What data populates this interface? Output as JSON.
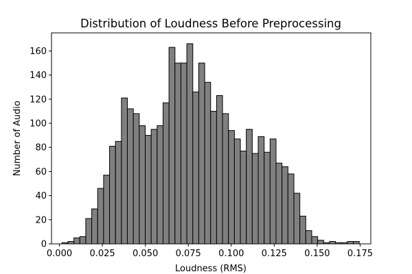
{
  "chart_data": {
    "type": "bar",
    "title": "Distribution of Loudness Before Preprocessing",
    "xlabel": "Loudness (RMS)",
    "ylabel": "Number of Audio",
    "xlim": [
      -0.0046,
      0.1812
    ],
    "ylim": [
      0,
      175
    ],
    "x_ticks": [
      0.0,
      0.025,
      0.05,
      0.075,
      0.1,
      0.125,
      0.15,
      0.175
    ],
    "x_tick_labels": [
      "0.000",
      "0.025",
      "0.050",
      "0.075",
      "0.100",
      "0.125",
      "0.150",
      "0.175"
    ],
    "y_ticks": [
      0,
      20,
      40,
      60,
      80,
      100,
      120,
      140,
      160
    ],
    "y_tick_labels": [
      "0",
      "20",
      "40",
      "60",
      "80",
      "100",
      "120",
      "140",
      "160"
    ],
    "bin_start": 0.0015,
    "bin_width": 0.00346,
    "values": [
      1,
      2,
      5,
      6,
      21,
      29,
      46,
      57,
      81,
      85,
      121,
      112,
      108,
      98,
      90,
      95,
      98,
      117,
      163,
      150,
      150,
      166,
      126,
      150,
      134,
      110,
      123,
      108,
      94,
      87,
      77,
      95,
      75,
      89,
      76,
      87,
      67,
      64,
      58,
      42,
      23,
      11,
      6,
      3,
      1,
      2,
      1,
      1,
      2,
      2
    ],
    "grid": false,
    "legend": "none",
    "bar_color": "#808080",
    "edge_color": "#000000"
  }
}
